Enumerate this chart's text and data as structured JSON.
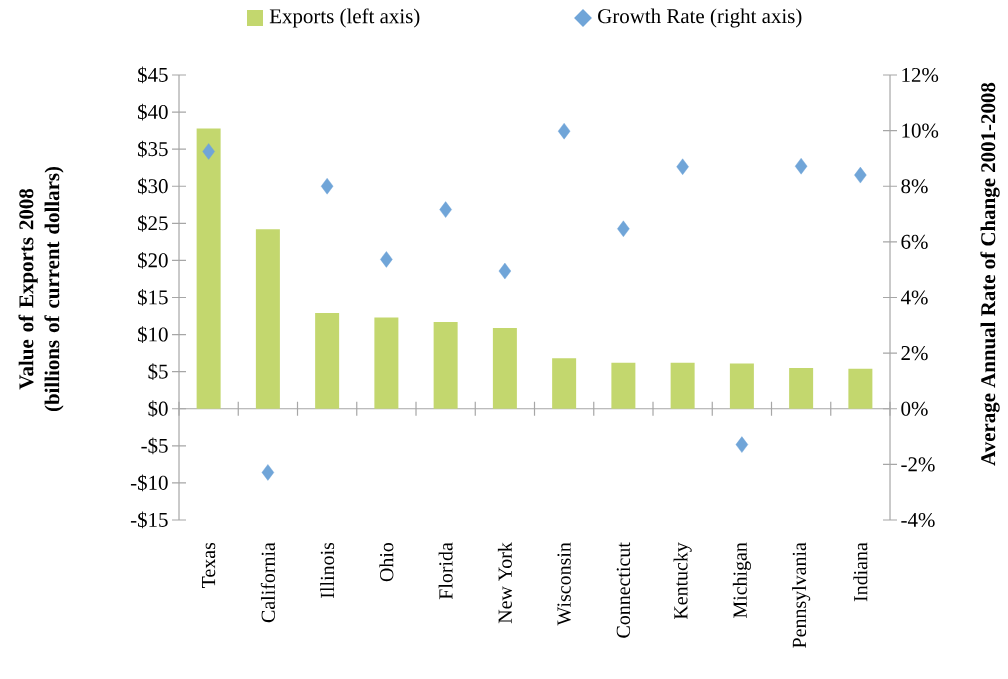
{
  "chart_data": {
    "type": "bar",
    "categories": [
      "Texas",
      "California",
      "Illinois",
      "Ohio",
      "Florida",
      "New York",
      "Wisconsin",
      "Connecticut",
      "Kentucky",
      "Michigan",
      "Pennsylvania",
      "Indiana"
    ],
    "series": [
      {
        "name": "Exports (left axis)",
        "color": "#c3d76e",
        "values": [
          37.8,
          24.2,
          12.9,
          12.3,
          11.7,
          10.9,
          6.8,
          6.2,
          6.2,
          6.1,
          5.5,
          5.4
        ]
      },
      {
        "name": "Growth Rate (right axis)",
        "type": "scatter",
        "axis": "y2",
        "color": "#70a5d8",
        "values": [
          9.25,
          -2.29,
          8.0,
          5.37,
          7.16,
          4.95,
          9.98,
          6.47,
          8.7,
          -1.29,
          8.72,
          8.4
        ]
      }
    ],
    "marker": "diamond",
    "legend": "top",
    "ylabel": "Value of Exports 2008 (billions of current dollars)",
    "y2label": "Average Annual Rate of Change 2001-2008",
    "ylim": [
      -15,
      45
    ],
    "yticks": [
      {
        "value": -15,
        "label": "-$15"
      },
      {
        "value": -10,
        "label": "-$10"
      },
      {
        "value": -5,
        "label": "-$5"
      },
      {
        "value": 0,
        "label": "$0"
      },
      {
        "value": 5,
        "label": "$5"
      },
      {
        "value": 10,
        "label": "$10"
      },
      {
        "value": 15,
        "label": "$15"
      },
      {
        "value": 20,
        "label": "$20"
      },
      {
        "value": 25,
        "label": "$25"
      },
      {
        "value": 30,
        "label": "$30"
      },
      {
        "value": 35,
        "label": "$35"
      },
      {
        "value": 40,
        "label": "$40"
      },
      {
        "value": 45,
        "label": "$45"
      }
    ],
    "y2lim": [
      -4,
      12
    ],
    "y2ticks": [
      {
        "value": -4,
        "label": "-4%"
      },
      {
        "value": -2,
        "label": "-2%"
      },
      {
        "value": 0,
        "label": "0%"
      },
      {
        "value": 2,
        "label": "2%"
      },
      {
        "value": 4,
        "label": "4%"
      },
      {
        "value": 6,
        "label": "6%"
      },
      {
        "value": 8,
        "label": "8%"
      },
      {
        "value": 10,
        "label": "10%"
      },
      {
        "value": 12,
        "label": "12%"
      }
    ]
  }
}
